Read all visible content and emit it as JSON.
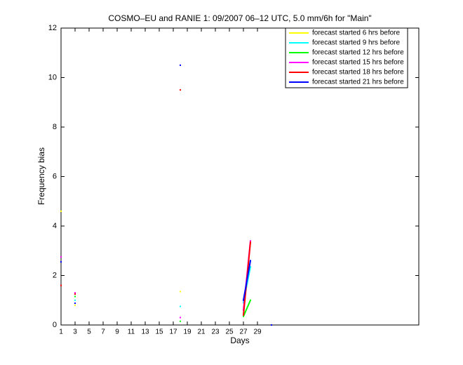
{
  "chart_data": {
    "type": "line",
    "title": "COSMO–EU and RANIE 1: 09/2007 06–12 UTC, 5.0 mm/6h for \"Main\"",
    "xlabel": "Days",
    "ylabel": "Frequency bias",
    "x": [
      1,
      3,
      18,
      27,
      28,
      31
    ],
    "series": [
      {
        "name": "forecast started 6 hrs before",
        "color": "#ffff00",
        "values": [
          4.6,
          0.8,
          1.35,
          null,
          null,
          null
        ]
      },
      {
        "name": "forecast started 9 hrs before",
        "color": "#00ffff",
        "values": [
          null,
          1.0,
          0.75,
          0.9,
          2.35,
          null
        ]
      },
      {
        "name": "forecast started 12 hrs before",
        "color": "#00ff00",
        "values": [
          null,
          1.15,
          0.15,
          0.35,
          1.0,
          null
        ]
      },
      {
        "name": "forecast started 15 hrs before",
        "color": "#ff00ff",
        "values": [
          2.75,
          1.3,
          0.3,
          0.6,
          3.4,
          null
        ]
      },
      {
        "name": "forecast started 18 hrs before",
        "color": "#ff0000",
        "values": [
          1.6,
          1.25,
          9.5,
          0.4,
          3.35,
          null
        ]
      },
      {
        "name": "forecast started 21 hrs before",
        "color": "#0000ff",
        "values": [
          2.55,
          0.88,
          10.5,
          1.0,
          2.6,
          0
        ]
      }
    ],
    "xlim": [
      1,
      52
    ],
    "xticks": [
      1,
      3,
      5,
      7,
      9,
      11,
      13,
      15,
      17,
      19,
      21,
      23,
      25,
      27,
      29
    ],
    "ylim": [
      0,
      12
    ],
    "yticks": [
      0,
      2,
      4,
      6,
      8,
      10,
      12
    ],
    "legend": "upper right"
  }
}
